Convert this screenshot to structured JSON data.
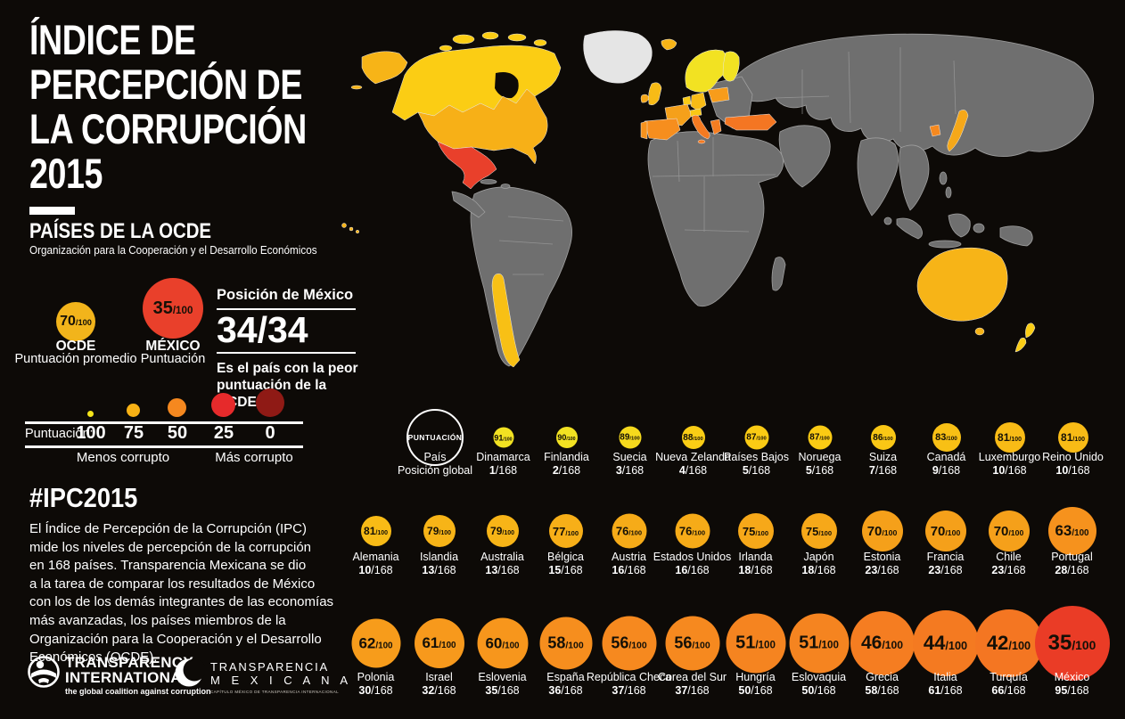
{
  "page": {
    "background": "#0D0A07"
  },
  "header": {
    "title_lines": [
      "ÍNDICE DE",
      "PERCEPCIÓN DE",
      "LA CORRUPCIÓN",
      "2015"
    ],
    "subtitle": "PAÍSES DE LA OCDE",
    "subtitle_caption": "Organización para la Cooperación y el Desarrollo Económicos"
  },
  "summary": {
    "ocde": {
      "score": "70",
      "suffix": "/100",
      "label": "OCDE",
      "sublabel": "Puntuación promedio",
      "color": "#F2B41B"
    },
    "mexico": {
      "score": "35",
      "suffix": "/100",
      "label": "MÉXICO",
      "sublabel": "Puntuación",
      "color": "#E9402B"
    },
    "position": {
      "heading": "Posición de México",
      "value": "34/34",
      "caption_line1": "Es el país con la peor",
      "caption_line2": "puntuación de la OCDE"
    }
  },
  "scale": {
    "label": "Puntuación:",
    "ticks": [
      "100",
      "75",
      "50",
      "25",
      "0"
    ],
    "dot_colors": [
      "#F4E41A",
      "#F8B215",
      "#F5881F",
      "#E62A2B",
      "#8F1A15"
    ],
    "left_caption": "Menos corrupto",
    "right_caption": "Más corrupto"
  },
  "about": {
    "hashtag": "#IPC2015",
    "lines": [
      "El Índice de Percepción de la Corrupción (IPC)",
      "mide los niveles de percepción de la corrupción",
      "en 168 países. Transparencia Mexicana se dio",
      "a la tarea de comparar los resultados de México",
      "con los de los demás integrantes de las economías",
      "más avanzadas, los países miembros de la",
      "Organización para la Cooperación y el Desarrollo",
      "Económicos (OCDE)."
    ]
  },
  "logos": {
    "ti": {
      "name_line1": "TRANSPARENCY",
      "name_line2": "INTERNATIONAL",
      "tagline": "the global coalition against corruption"
    },
    "tm": {
      "name_line1": "TRANSPARENCIA",
      "name_line2": "M E X I C A N A",
      "tagline": "CAPÍTULO MÉXICO DE TRANSPARENCIA INTERNACIONAL"
    }
  },
  "legend_bubble": {
    "label": "PUNTUACIÓN",
    "caption_line1": "País",
    "caption_line2": "Posición global"
  },
  "chart_data": {
    "type": "bubble",
    "title": "Índice de Percepción de la Corrupción 2015 — Países de la OCDE",
    "note": "Bubble size grows and color shifts yellow→red as score (0-100) decreases; rank is position among 168 countries",
    "value_suffix": "/100",
    "rank_suffix": "/168",
    "scale": {
      "ticks": [
        100,
        75,
        50,
        25,
        0
      ],
      "less": "Menos corrupto",
      "more": "Más corrupto"
    },
    "ocde_average": 70,
    "mexico_score": 35,
    "mexico_position": "34/34",
    "rows": [
      [
        {
          "country": "Dinamarca",
          "score": 91,
          "rank": 1,
          "color": "#F2E222"
        },
        {
          "country": "Finlandia",
          "score": 90,
          "rank": 2,
          "color": "#F2E222"
        },
        {
          "country": "Suecia",
          "score": 89,
          "rank": 3,
          "color": "#F5D91D"
        },
        {
          "country": "Nueva Zelanda",
          "score": 88,
          "rank": 4,
          "color": "#FACD15"
        },
        {
          "country": "Países Bajos",
          "score": 87,
          "rank": 5,
          "color": "#FACB14"
        },
        {
          "country": "Noruega",
          "score": 87,
          "rank": 5,
          "color": "#FACB14"
        },
        {
          "country": "Suiza",
          "score": 86,
          "rank": 7,
          "color": "#F9C715"
        },
        {
          "country": "Canadá",
          "score": 83,
          "rank": 9,
          "color": "#F8C015"
        },
        {
          "country": "Luxemburgo",
          "score": 81,
          "rank": 10,
          "color": "#F8BB16"
        },
        {
          "country": "Reino Unido",
          "score": 81,
          "rank": 10,
          "color": "#F8BB16"
        }
      ],
      [
        {
          "country": "Alemania",
          "score": 81,
          "rank": 10,
          "color": "#F8BB16"
        },
        {
          "country": "Islandia",
          "score": 79,
          "rank": 13,
          "color": "#F7B417"
        },
        {
          "country": "Australia",
          "score": 79,
          "rank": 13,
          "color": "#F7B417"
        },
        {
          "country": "Bélgica",
          "score": 77,
          "rank": 15,
          "color": "#F7AF18"
        },
        {
          "country": "Austria",
          "score": 76,
          "rank": 16,
          "color": "#F6AB18"
        },
        {
          "country": "Estados Unidos",
          "score": 76,
          "rank": 16,
          "color": "#F6AB18"
        },
        {
          "country": "Irlanda",
          "score": 75,
          "rank": 18,
          "color": "#F6A819"
        },
        {
          "country": "Japón",
          "score": 75,
          "rank": 18,
          "color": "#F6A819"
        },
        {
          "country": "Estonia",
          "score": 70,
          "rank": 23,
          "color": "#F5A01A"
        },
        {
          "country": "Francia",
          "score": 70,
          "rank": 23,
          "color": "#F5A01A"
        },
        {
          "country": "Chile",
          "score": 70,
          "rank": 23,
          "color": "#F5A01A"
        },
        {
          "country": "Portugal",
          "score": 63,
          "rank": 28,
          "color": "#F6921D"
        }
      ],
      [
        {
          "country": "Polonia",
          "score": 62,
          "rank": 30,
          "color": "#F79C1B"
        },
        {
          "country": "Israel",
          "score": 61,
          "rank": 32,
          "color": "#F7991C"
        },
        {
          "country": "Eslovenia",
          "score": 60,
          "rank": 35,
          "color": "#F7961C"
        },
        {
          "country": "España",
          "score": 58,
          "rank": 36,
          "color": "#F68E1E"
        },
        {
          "country": "República Checa",
          "score": 56,
          "rank": 37,
          "color": "#F6891F"
        },
        {
          "country": "Corea del Sur",
          "score": 56,
          "rank": 37,
          "color": "#F6891F"
        },
        {
          "country": "Hungría",
          "score": 51,
          "rank": 50,
          "color": "#F58420"
        },
        {
          "country": "Eslovaquia",
          "score": 51,
          "rank": 50,
          "color": "#F58420"
        },
        {
          "country": "Grecia",
          "score": 46,
          "rank": 58,
          "color": "#F57D21"
        },
        {
          "country": "Italia",
          "score": 44,
          "rank": 61,
          "color": "#F47A21"
        },
        {
          "country": "Turquía",
          "score": 42,
          "rank": 66,
          "color": "#F47622"
        },
        {
          "country": "México",
          "score": 35,
          "rank": 95,
          "color": "#EA3C26"
        }
      ]
    ]
  },
  "map": {
    "ocean": "#0D0A07",
    "land": "#6F6F6F",
    "border": "#9F9F9F",
    "greenland": "#E5E5E5",
    "canada": "#FBCD14",
    "alaska": "#F7B417",
    "usa": "#F7B017",
    "hawaii": "#F7B417",
    "mexico": "#E9402B",
    "chile": "#F8C015",
    "scandinavia": "#F2E222",
    "finland": "#F2E222",
    "denmark": "#F2E222",
    "iceland": "#F7B417",
    "uk": "#F8BB16",
    "ireland": "#F6A819",
    "benelux": "#FACB14",
    "germany": "#F8BB16",
    "poland": "#F79C1B",
    "france": "#F5A01A",
    "spain": "#F68E1E",
    "portugal": "#F6921D",
    "alpine": "#F9C715",
    "italy": "#F47A21",
    "greece": "#F57D21",
    "turkey": "#F47622",
    "japan": "#F6A819",
    "south_korea": "#F6891F",
    "australia": "#F7B417",
    "new_zealand": "#FACD15"
  }
}
